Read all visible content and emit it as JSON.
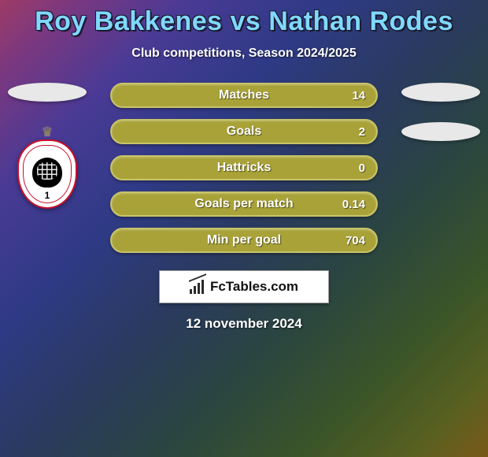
{
  "title": "Roy Bakkenes vs Nathan Rodes",
  "subtitle": "Club competitions, Season 2024/2025",
  "date": "12 november 2024",
  "brand": "FcTables.com",
  "badge_year": "1",
  "colors": {
    "title": "#80d8ff",
    "bar_fill": "#a8a238",
    "bar_border": "#c8c468",
    "text": "#ffffff"
  },
  "stats": [
    {
      "label": "Matches",
      "value": "14"
    },
    {
      "label": "Goals",
      "value": "2"
    },
    {
      "label": "Hattricks",
      "value": "0"
    },
    {
      "label": "Goals per match",
      "value": "0.14"
    },
    {
      "label": "Min per goal",
      "value": "704"
    }
  ]
}
